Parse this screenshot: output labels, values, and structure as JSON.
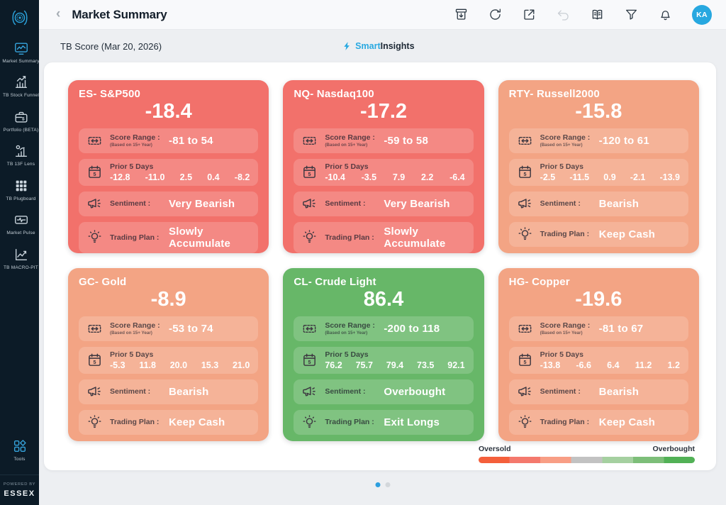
{
  "sidebar": {
    "items": [
      {
        "label": "Market Summary",
        "icon": "market-summary-icon",
        "active": true
      },
      {
        "label": "TB Stock Funnel",
        "icon": "stock-funnel-icon",
        "active": false
      },
      {
        "label": "Portfolio (BETA)",
        "icon": "portfolio-icon",
        "active": false
      },
      {
        "label": "TB 13F Lens",
        "icon": "13f-lens-icon",
        "active": false
      },
      {
        "label": "TB Plugboard",
        "icon": "plugboard-icon",
        "active": false
      },
      {
        "label": "Market Pulse",
        "icon": "market-pulse-icon",
        "active": false
      },
      {
        "label": "TB MACRO-PIT",
        "icon": "macro-pit-icon",
        "active": false
      }
    ],
    "tools": {
      "label": "Tools",
      "icon": "tools-icon"
    },
    "powered_by": "POWERED BY",
    "brand": "ESSEX"
  },
  "header": {
    "title": "Market Summary",
    "back_icon": "‹",
    "icons": [
      {
        "name": "archive-report-icon",
        "disabled": false
      },
      {
        "name": "refresh-icon",
        "disabled": false
      },
      {
        "name": "open-external-icon",
        "disabled": false
      },
      {
        "name": "undo-icon",
        "disabled": true
      },
      {
        "name": "reading-list-icon",
        "disabled": false
      },
      {
        "name": "filter-icon",
        "disabled": false
      },
      {
        "name": "notifications-icon",
        "disabled": false
      }
    ],
    "avatar": "KA"
  },
  "subheader": {
    "tb_score_label": "TB Score (Mar 20, 2026)",
    "smart": "Smart",
    "insights": "Insights"
  },
  "labels": {
    "score_range": "Score Range :",
    "based_on": "(Based on 15+ Year)",
    "prior": "Prior 5 Days",
    "sentiment": "Sentiment :",
    "trading_plan": "Trading Plan :"
  },
  "cards": [
    {
      "title": "ES- S&P500",
      "score": "-18.4",
      "range": "-81 to 54",
      "prior": [
        "-12.8",
        "-11.0",
        "2.5",
        "0.4",
        "-8.2"
      ],
      "sentiment": "Very Bearish",
      "plan": "Slowly Accumulate",
      "theme": "red"
    },
    {
      "title": "NQ- Nasdaq100",
      "score": "-17.2",
      "range": "-59 to 58",
      "prior": [
        "-10.4",
        "-3.5",
        "7.9",
        "2.2",
        "-6.4"
      ],
      "sentiment": "Very Bearish",
      "plan": "Slowly Accumulate",
      "theme": "red"
    },
    {
      "title": "RTY- Russell2000",
      "score": "-15.8",
      "range": "-120 to 61",
      "prior": [
        "-2.5",
        "-11.5",
        "0.9",
        "-2.1",
        "-13.9"
      ],
      "sentiment": "Bearish",
      "plan": "Keep Cash",
      "theme": "salmon"
    },
    {
      "title": "GC- Gold",
      "score": "-8.9",
      "range": "-53 to 74",
      "prior": [
        "-5.3",
        "11.8",
        "20.0",
        "15.3",
        "21.0"
      ],
      "sentiment": "Bearish",
      "plan": "Keep Cash",
      "theme": "salmon"
    },
    {
      "title": "CL- Crude Light",
      "score": "86.4",
      "range": "-200 to 118",
      "prior": [
        "76.2",
        "75.7",
        "79.4",
        "73.5",
        "92.1"
      ],
      "sentiment": "Overbought",
      "plan": "Exit Longs",
      "theme": "green"
    },
    {
      "title": "HG- Copper",
      "score": "-19.6",
      "range": "-81 to 67",
      "prior": [
        "-13.8",
        "-6.6",
        "6.4",
        "11.2",
        "1.2"
      ],
      "sentiment": "Bearish",
      "plan": "Keep Cash",
      "theme": "salmon"
    }
  ],
  "legend": {
    "left": "Oversold",
    "right": "Overbought",
    "colors": [
      "#f45f3b",
      "#f4796d",
      "#f89e85",
      "#c2c2c2",
      "#a5d0a0",
      "#7dbe79",
      "#52b156"
    ]
  },
  "pagination": {
    "dots": 2,
    "active": 0
  },
  "colors": {
    "card_red": "#F2716B",
    "card_salmon": "#F3A484",
    "card_green": "#67B768",
    "accent_blue": "#29a9e1",
    "sidebar_bg": "#0c1b27"
  }
}
